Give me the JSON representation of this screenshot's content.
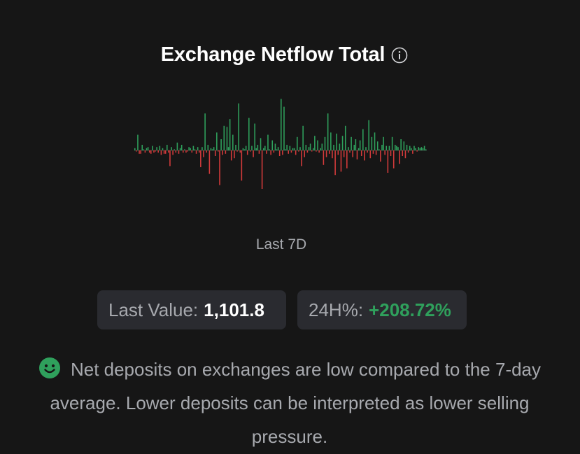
{
  "widget": {
    "title": "Exchange Netflow Total",
    "info_icon": "info-circle-icon",
    "period_label": "Last 7D",
    "last_value_label": "Last Value:",
    "last_value": "1,101.8",
    "change_label": "24H%:",
    "change_value": "+208.72%",
    "sentiment_icon": "smiley-face-icon",
    "description": "Net deposits on exchanges are low compared to the 7-day average. Lower deposits can be interpreted as lower selling pressure."
  },
  "colors": {
    "background": "#161616",
    "positive": "#2fa05c",
    "negative": "#d43b3b",
    "badge_bg": "#2a2b30",
    "muted_text": "#a7a9ae"
  },
  "chart_data": {
    "type": "bar",
    "values": [
      2,
      -1,
      14,
      -3,
      -3,
      5,
      1,
      -2,
      2,
      3,
      -2,
      -3,
      4,
      -2,
      -1,
      3,
      -2,
      4,
      -4,
      2,
      -3,
      -3,
      5,
      -2,
      -14,
      3,
      -4,
      1,
      -2,
      7,
      -3,
      2,
      5,
      -2,
      1,
      -2,
      -1,
      3,
      2,
      -2,
      4,
      1,
      -3,
      3,
      -2,
      -15,
      3,
      -6,
      33,
      -2,
      5,
      -21,
      2,
      1,
      3,
      -5,
      16,
      -1,
      -31,
      10,
      -4,
      22,
      -3,
      21,
      3,
      28,
      -9,
      14,
      -7,
      5,
      -1,
      42,
      -2,
      -27,
      2,
      1,
      4,
      -4,
      29,
      -1,
      4,
      -6,
      24,
      2,
      5,
      -3,
      11,
      -43,
      2,
      4,
      -3,
      14,
      1,
      -4,
      9,
      -2,
      6,
      1,
      3,
      -5,
      46,
      -4,
      39,
      1,
      5,
      -3,
      4,
      -2,
      2,
      2,
      -4,
      12,
      -1,
      3,
      -14,
      22,
      -6,
      5,
      -2,
      3,
      6,
      -1,
      2,
      13,
      -1,
      9,
      -2,
      2,
      6,
      -13,
      12,
      -6,
      33,
      -3,
      16,
      -7,
      5,
      -22,
      15,
      -4,
      6,
      -19,
      13,
      -6,
      22,
      -16,
      3,
      -2,
      12,
      -6,
      5,
      10,
      -8,
      2,
      9,
      -5,
      19,
      -9,
      3,
      -2,
      27,
      -7,
      12,
      -3,
      16,
      -4,
      8,
      1,
      -10,
      5,
      12,
      -4,
      4,
      -20,
      4,
      -5,
      12,
      -16,
      5,
      4,
      3,
      -12,
      10,
      -5,
      8,
      -7,
      5,
      -2,
      4,
      2,
      -3,
      4,
      2,
      -1,
      3,
      2,
      3,
      2,
      4,
      1
    ]
  }
}
